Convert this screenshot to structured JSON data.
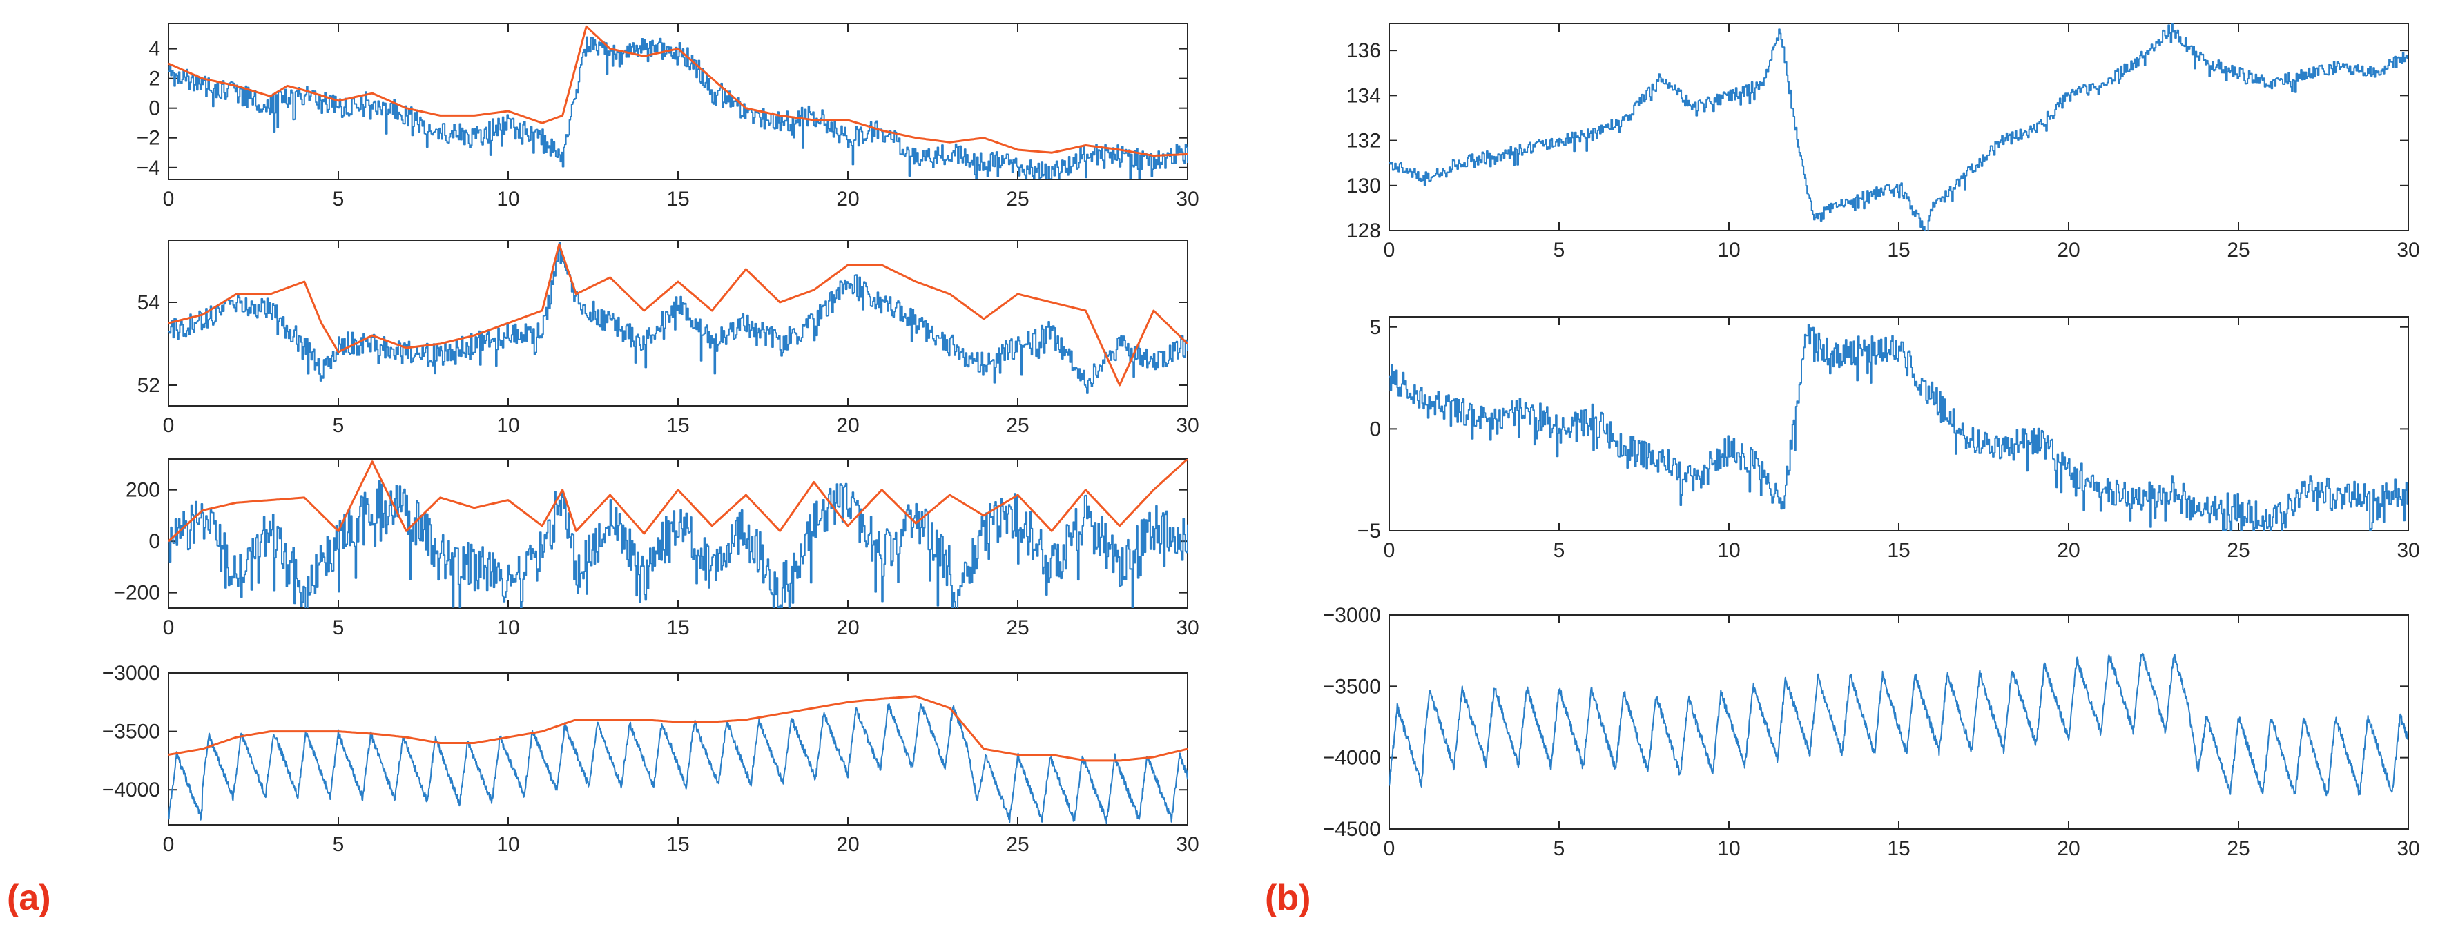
{
  "panel_labels": [
    "(a)",
    "(b)"
  ],
  "colors": {
    "signal": "#2a7fc8",
    "envelope": "#f15a24",
    "axis": "#262626",
    "label": "#e8331c"
  },
  "chart_data": [
    {
      "id": "a1",
      "type": "line",
      "panel": "(a)",
      "xlim": [
        0,
        30
      ],
      "ylim": [
        -4.8,
        5.7
      ],
      "xticks": [
        0,
        5,
        10,
        15,
        20,
        25,
        30
      ],
      "yticks": [
        -4,
        -2,
        0,
        2,
        4
      ],
      "series": [
        {
          "name": "signal",
          "role": "signal",
          "x": [
            0,
            1,
            2,
            3,
            4,
            5,
            6,
            7,
            8,
            9,
            10,
            11,
            11.6,
            12.3,
            13,
            14,
            15,
            16,
            17,
            18,
            19,
            20,
            21,
            22,
            23,
            24,
            25,
            26,
            27,
            28,
            29,
            30
          ],
          "y": [
            2.5,
            1.5,
            1.0,
            0.2,
            1.0,
            0.0,
            0.5,
            -0.5,
            -1.5,
            -2.0,
            -1.0,
            -2.0,
            -3.5,
            4.5,
            3.5,
            4.0,
            4.0,
            1.5,
            -0.5,
            -1.0,
            -0.5,
            -2.0,
            -1.5,
            -3.5,
            -3.0,
            -3.5,
            -3.8,
            -4.5,
            -3.0,
            -3.2,
            -3.5,
            -3.0
          ]
        },
        {
          "name": "envelope",
          "role": "envelope",
          "x": [
            0,
            1,
            2,
            3,
            3.5,
            4,
            5,
            6,
            7,
            8,
            9,
            10,
            11,
            11.6,
            12.3,
            13,
            14,
            15,
            16,
            17,
            18,
            19,
            20,
            21,
            22,
            23,
            24,
            25,
            26,
            27,
            28,
            29,
            30
          ],
          "y": [
            3.0,
            2.0,
            1.5,
            0.8,
            1.5,
            1.2,
            0.5,
            1.0,
            0.0,
            -0.5,
            -0.5,
            -0.2,
            -1.0,
            -0.5,
            5.5,
            4.0,
            3.5,
            4.0,
            2.0,
            0.0,
            -0.5,
            -0.8,
            -0.8,
            -1.5,
            -2.0,
            -2.3,
            -2.0,
            -2.8,
            -3.0,
            -2.5,
            -2.8,
            -3.2,
            -3.1
          ]
        }
      ]
    },
    {
      "id": "a2",
      "type": "line",
      "panel": "(a)",
      "xlim": [
        0,
        30
      ],
      "ylim": [
        51.5,
        55.5
      ],
      "xticks": [
        0,
        5,
        10,
        15,
        20,
        25,
        30
      ],
      "yticks": [
        52,
        54
      ],
      "series": [
        {
          "name": "signal",
          "role": "signal",
          "x": [
            0,
            1,
            2,
            3,
            4,
            4.5,
            5,
            6,
            7,
            8,
            9,
            10,
            11,
            11.5,
            12,
            13,
            14,
            15,
            16,
            17,
            18,
            19,
            20,
            21,
            22,
            23,
            24,
            25,
            26,
            27,
            28,
            29,
            30
          ],
          "y": [
            53.3,
            53.6,
            54.0,
            53.8,
            53.0,
            52.3,
            53.0,
            53.0,
            52.8,
            52.7,
            53.0,
            53.2,
            53.3,
            55.3,
            54.0,
            53.5,
            53.0,
            54.0,
            53.0,
            53.5,
            53.0,
            53.5,
            54.5,
            54.0,
            53.5,
            53.0,
            52.5,
            53.0,
            53.3,
            52.0,
            53.0,
            52.5,
            53.0
          ]
        },
        {
          "name": "envelope",
          "role": "envelope",
          "x": [
            0,
            1,
            2,
            3,
            4,
            4.5,
            5,
            6,
            7,
            8,
            9,
            10,
            11,
            11.5,
            12,
            13,
            14,
            15,
            16,
            17,
            18,
            19,
            20,
            21,
            22,
            23,
            24,
            25,
            26,
            27,
            28,
            29,
            30
          ],
          "y": [
            53.5,
            53.7,
            54.2,
            54.2,
            54.5,
            53.5,
            52.8,
            53.2,
            52.9,
            53.0,
            53.2,
            53.5,
            53.8,
            55.4,
            54.2,
            54.6,
            53.8,
            54.5,
            53.8,
            54.8,
            54.0,
            54.3,
            54.9,
            54.9,
            54.5,
            54.2,
            53.6,
            54.2,
            54.0,
            53.8,
            52.0,
            53.8,
            53.0
          ]
        }
      ]
    },
    {
      "id": "a3",
      "type": "line",
      "panel": "(a)",
      "xlim": [
        0,
        30
      ],
      "ylim": [
        -260,
        320
      ],
      "xticks": [
        0,
        5,
        10,
        15,
        20,
        25,
        30
      ],
      "yticks": [
        -200,
        0,
        200
      ],
      "series": [
        {
          "name": "signal",
          "role": "signal",
          "x": [
            0,
            1,
            2,
            3,
            4,
            5,
            6,
            7,
            8,
            9,
            10,
            11,
            11.6,
            12,
            13,
            14,
            15,
            16,
            17,
            18,
            19,
            20,
            21,
            22,
            23,
            23.2,
            24,
            25,
            26,
            27,
            28,
            29,
            30
          ],
          "y": [
            0,
            100,
            -150,
            50,
            -200,
            0,
            150,
            120,
            -50,
            -100,
            -150,
            -50,
            200,
            -150,
            100,
            -150,
            100,
            -100,
            50,
            -200,
            100,
            150,
            -50,
            100,
            -100,
            -250,
            50,
            100,
            -100,
            100,
            -100,
            50,
            0
          ]
        },
        {
          "name": "envelope",
          "role": "envelope",
          "x": [
            0,
            1,
            2,
            3,
            4,
            5,
            6,
            7,
            8,
            9,
            10,
            11,
            11.6,
            12,
            13,
            14,
            15,
            16,
            17,
            18,
            19,
            20,
            21,
            22,
            23,
            24,
            25,
            26,
            27,
            28,
            29,
            30
          ],
          "y": [
            0,
            120,
            150,
            160,
            170,
            40,
            310,
            40,
            170,
            130,
            160,
            60,
            200,
            40,
            180,
            30,
            200,
            60,
            180,
            40,
            230,
            60,
            200,
            70,
            180,
            100,
            180,
            40,
            200,
            60,
            200,
            320
          ]
        }
      ]
    },
    {
      "id": "a4",
      "type": "line",
      "panel": "(a)",
      "xlim": [
        0,
        30
      ],
      "ylim": [
        -4300,
        -3000
      ],
      "xticks": [
        0,
        5,
        10,
        15,
        20,
        25,
        30
      ],
      "yticks": [
        -4000,
        -3500,
        -3000
      ],
      "series": [
        {
          "name": "signal",
          "role": "signal",
          "pattern": "oscillation (~1 Hz) between about -4150 and -3550, rising slowly to a -3950..-3250 band near x=21-23, then dropping back to -4150..-3700 after x=24"
        },
        {
          "name": "envelope",
          "role": "envelope",
          "x": [
            0,
            1,
            2,
            3,
            4,
            5,
            6,
            7,
            8,
            9,
            10,
            11,
            12,
            13,
            14,
            15,
            16,
            17,
            18,
            19,
            20,
            21,
            22,
            23,
            24,
            25,
            26,
            27,
            28,
            29,
            30
          ],
          "y": [
            -3700,
            -3650,
            -3550,
            -3500,
            -3500,
            -3500,
            -3520,
            -3550,
            -3600,
            -3600,
            -3550,
            -3500,
            -3400,
            -3400,
            -3400,
            -3420,
            -3420,
            -3400,
            -3350,
            -3300,
            -3250,
            -3220,
            -3200,
            -3300,
            -3650,
            -3700,
            -3700,
            -3750,
            -3750,
            -3720,
            -3650
          ]
        }
      ]
    },
    {
      "id": "b1",
      "type": "line",
      "panel": "(b)",
      "xlim": [
        0,
        30
      ],
      "ylim": [
        128,
        137.2
      ],
      "xticks": [
        0,
        5,
        10,
        15,
        20,
        25,
        30
      ],
      "yticks": [
        128,
        130,
        132,
        134,
        136
      ],
      "series": [
        {
          "name": "signal",
          "role": "signal",
          "x": [
            0,
            1,
            2,
            3,
            4,
            5,
            6,
            7,
            8,
            9,
            10,
            11,
            11.5,
            12,
            12.5,
            13,
            14,
            15,
            15.8,
            16,
            17,
            18,
            19,
            20,
            21,
            22,
            23,
            24,
            25,
            26,
            27,
            28,
            29,
            30
          ],
          "y": [
            131,
            130.3,
            131,
            131.3,
            131.6,
            132,
            132.3,
            133,
            134.8,
            133.5,
            134,
            134.5,
            137,
            132,
            128.5,
            129,
            129.5,
            130,
            128,
            129,
            130.5,
            132,
            132.5,
            134,
            134.5,
            135.5,
            137,
            135.5,
            135,
            134.5,
            135,
            135.3,
            135,
            135.8
          ]
        }
      ]
    },
    {
      "id": "b2",
      "type": "line",
      "panel": "(b)",
      "xlim": [
        0,
        30
      ],
      "ylim": [
        -5,
        5.5
      ],
      "xticks": [
        0,
        5,
        10,
        15,
        20,
        25,
        30
      ],
      "yticks": [
        -5,
        0,
        5
      ],
      "series": [
        {
          "name": "signal",
          "role": "signal",
          "x": [
            0,
            1,
            2,
            3,
            4,
            5,
            6,
            7,
            8,
            9,
            10,
            11,
            11.6,
            12.3,
            13,
            14,
            15,
            16,
            17,
            18,
            19,
            20,
            21,
            22,
            23,
            24,
            25,
            26,
            27,
            28,
            29,
            30
          ],
          "y": [
            2.5,
            1.5,
            1.0,
            0.2,
            1.0,
            0.0,
            0.5,
            -1.0,
            -1.5,
            -2.5,
            -1.0,
            -2.0,
            -3.5,
            5.0,
            3.5,
            4.0,
            4.0,
            1.5,
            -0.5,
            -1.0,
            -0.5,
            -2.0,
            -3.0,
            -3.5,
            -3.0,
            -4.0,
            -3.8,
            -4.5,
            -3.0,
            -3.2,
            -3.5,
            -3.0
          ]
        }
      ]
    },
    {
      "id": "b3",
      "type": "line",
      "panel": "(b)",
      "xlim": [
        0,
        30
      ],
      "ylim": [
        -4500,
        -3000
      ],
      "xticks": [
        0,
        5,
        10,
        15,
        20,
        25,
        30
      ],
      "yticks": [
        -4500,
        -4000,
        -3500,
        -3000
      ],
      "series": [
        {
          "name": "signal",
          "role": "signal",
          "pattern": "oscillation (~1 Hz) between about -4150 and -3550, rising slowly to a -3950..-3250 band near x=21-23, then dropping back to -4150..-3700 after x=24"
        }
      ]
    }
  ]
}
